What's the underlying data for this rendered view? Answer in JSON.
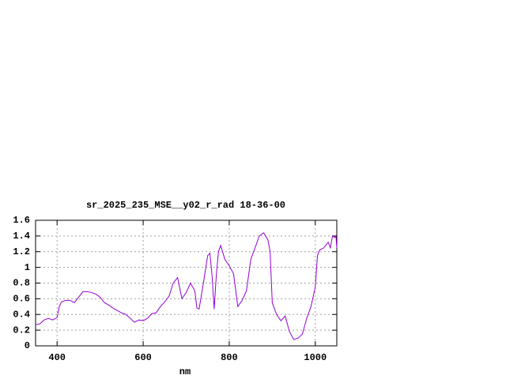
{
  "chart_data": {
    "type": "line",
    "title": "sr_2025_235_MSE__y02_r_rad 18-36-00",
    "x_label": "nm",
    "xlim": [
      350,
      1050
    ],
    "xticks": [
      400,
      600,
      800,
      1000
    ],
    "ylim": [
      0,
      1.6
    ],
    "yticks": [
      0,
      0.2,
      0.4,
      0.6,
      0.8,
      1,
      1.2,
      1.4,
      1.6
    ],
    "grid": true,
    "series": [
      {
        "color": "#9400d3",
        "x": [
          350,
          360,
          370,
          380,
          390,
          400,
          405,
          410,
          420,
          430,
          440,
          450,
          460,
          470,
          480,
          490,
          500,
          510,
          520,
          530,
          540,
          550,
          560,
          570,
          580,
          590,
          600,
          610,
          620,
          630,
          640,
          650,
          660,
          670,
          680,
          690,
          700,
          710,
          720,
          725,
          730,
          740,
          750,
          755,
          760,
          765,
          770,
          775,
          780,
          790,
          800,
          810,
          820,
          830,
          840,
          850,
          860,
          870,
          880,
          890,
          895,
          900,
          910,
          920,
          930,
          940,
          950,
          960,
          970,
          980,
          990,
          1000,
          1005,
          1010,
          1020,
          1030,
          1035,
          1040,
          1045,
          1048,
          1050
        ],
        "values": [
          0.27,
          0.28,
          0.33,
          0.35,
          0.33,
          0.36,
          0.5,
          0.56,
          0.58,
          0.58,
          0.55,
          0.62,
          0.69,
          0.69,
          0.68,
          0.66,
          0.62,
          0.55,
          0.52,
          0.48,
          0.45,
          0.42,
          0.4,
          0.35,
          0.3,
          0.33,
          0.32,
          0.35,
          0.41,
          0.42,
          0.5,
          0.56,
          0.63,
          0.8,
          0.87,
          0.6,
          0.68,
          0.8,
          0.7,
          0.48,
          0.47,
          0.8,
          1.15,
          1.18,
          0.9,
          0.47,
          0.9,
          1.2,
          1.28,
          1.1,
          1.02,
          0.92,
          0.5,
          0.58,
          0.7,
          1.1,
          1.25,
          1.4,
          1.44,
          1.35,
          1.2,
          0.55,
          0.4,
          0.32,
          0.38,
          0.18,
          0.08,
          0.1,
          0.15,
          0.35,
          0.5,
          0.75,
          1.15,
          1.22,
          1.25,
          1.32,
          1.25,
          1.4,
          1.38,
          1.4,
          1.25
        ]
      }
    ]
  }
}
